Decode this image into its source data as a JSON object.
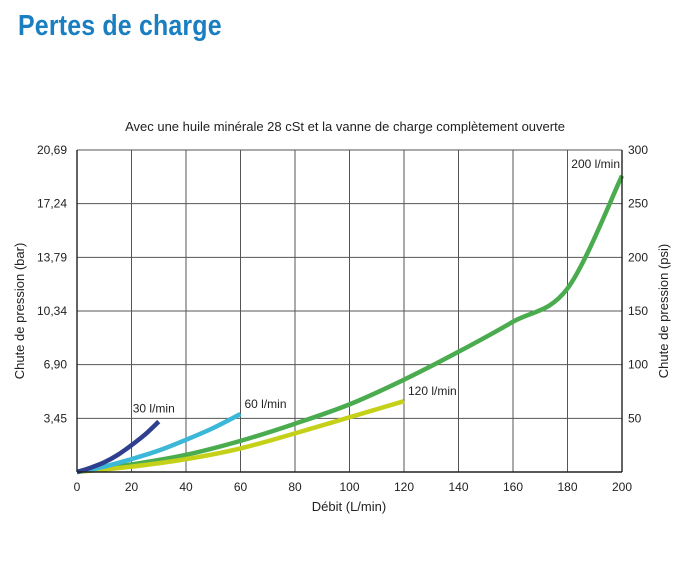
{
  "page": {
    "title": "Pertes de charge"
  },
  "chart_data": {
    "type": "line",
    "title": "Avec une huile minérale 28 cSt et la vanne de charge complètement ouverte",
    "xlabel": "Débit (L/min)",
    "ylabel": "Chute de pression (bar)",
    "y2label": "Chute de pression (psi)",
    "xlim": [
      0,
      200
    ],
    "ylim_psi": [
      0,
      300
    ],
    "x_ticks": [
      "0",
      "20",
      "40",
      "60",
      "80",
      "100",
      "120",
      "140",
      "160",
      "180",
      "200"
    ],
    "y_ticks_bar": [
      "",
      "3,45",
      "6,90",
      "10,34",
      "13,79",
      "17,24",
      "20,69"
    ],
    "y_ticks_psi": [
      "",
      "50",
      "100",
      "150",
      "200",
      "250",
      "300"
    ],
    "grid": true,
    "series": [
      {
        "name": "30 l/min",
        "color": "#2e3f8f",
        "x": [
          0,
          5,
          10,
          15,
          20,
          25,
          30
        ],
        "y": [
          0,
          4,
          9,
          16,
          25,
          35,
          47
        ]
      },
      {
        "name": "60 l/min",
        "color": "#3bb7d8",
        "x": [
          0,
          10,
          20,
          30,
          40,
          50,
          60
        ],
        "y": [
          0,
          5,
          12,
          20,
          30,
          41,
          54
        ]
      },
      {
        "name": "120 l/min",
        "color": "#c5d118",
        "x": [
          0,
          20,
          40,
          60,
          80,
          100,
          120
        ],
        "y": [
          0,
          5,
          12,
          22,
          36,
          51,
          66
        ]
      },
      {
        "name": "200 l/min",
        "color": "#4aac4e",
        "x": [
          0,
          20,
          40,
          60,
          80,
          100,
          120,
          140,
          160,
          180,
          200
        ],
        "y": [
          0,
          7,
          16,
          29,
          45,
          63,
          86,
          112,
          140,
          171,
          276
        ]
      }
    ]
  }
}
